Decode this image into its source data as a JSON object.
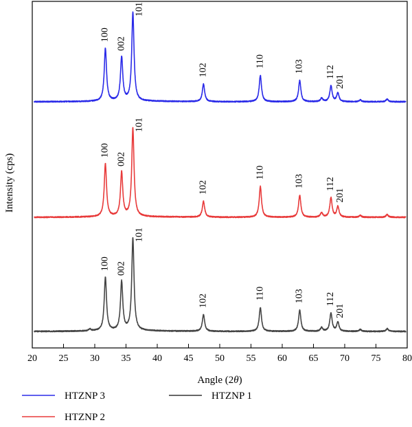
{
  "chart_data": {
    "type": "line",
    "title": "",
    "xlabel": "Angle (2θ)",
    "ylabel": "Intensity (cps)",
    "xlim": [
      20,
      80
    ],
    "x_ticks": [
      20,
      25,
      30,
      35,
      40,
      45,
      50,
      55,
      60,
      65,
      70,
      75,
      80
    ],
    "grid": false,
    "legend_position": "bottom",
    "legend": [
      {
        "name": "HTZNP 3",
        "color": "#2a2ae8"
      },
      {
        "name": "HTZNP 2",
        "color": "#e83a3a"
      },
      {
        "name": "HTZNP 1",
        "color": "#333333"
      }
    ],
    "series": [
      {
        "name": "HTZNP 3",
        "color": "#2a2ae8",
        "peaks": [
          {
            "x": 31.7,
            "y": 0.6,
            "label": "100"
          },
          {
            "x": 34.3,
            "y": 0.5,
            "label": "002"
          },
          {
            "x": 36.1,
            "y": 1.0,
            "label": "101"
          },
          {
            "x": 47.4,
            "y": 0.2,
            "label": "102"
          },
          {
            "x": 56.5,
            "y": 0.3,
            "label": "110"
          },
          {
            "x": 62.8,
            "y": 0.24,
            "label": "103"
          },
          {
            "x": 67.8,
            "y": 0.18,
            "label": "112"
          },
          {
            "x": 68.9,
            "y": 0.1,
            "label": "201"
          },
          {
            "x": 66.3,
            "y": 0.04
          },
          {
            "x": 72.5,
            "y": 0.02
          },
          {
            "x": 76.8,
            "y": 0.03
          }
        ]
      },
      {
        "name": "HTZNP 2",
        "color": "#e83a3a",
        "peaks": [
          {
            "x": 31.7,
            "y": 0.6,
            "label": "100"
          },
          {
            "x": 34.3,
            "y": 0.5,
            "label": "002"
          },
          {
            "x": 36.1,
            "y": 1.0,
            "label": "101"
          },
          {
            "x": 47.4,
            "y": 0.18,
            "label": "102"
          },
          {
            "x": 56.5,
            "y": 0.35,
            "label": "110"
          },
          {
            "x": 62.8,
            "y": 0.25,
            "label": "103"
          },
          {
            "x": 67.8,
            "y": 0.22,
            "label": "112"
          },
          {
            "x": 68.9,
            "y": 0.12,
            "label": "201"
          },
          {
            "x": 66.3,
            "y": 0.05
          },
          {
            "x": 72.5,
            "y": 0.02
          },
          {
            "x": 76.8,
            "y": 0.03
          }
        ]
      },
      {
        "name": "HTZNP 1",
        "color": "#444444",
        "peaks": [
          {
            "x": 31.7,
            "y": 0.58,
            "label": "100"
          },
          {
            "x": 34.3,
            "y": 0.53,
            "label": "002"
          },
          {
            "x": 36.1,
            "y": 1.0,
            "label": "101"
          },
          {
            "x": 47.4,
            "y": 0.18,
            "label": "102"
          },
          {
            "x": 56.5,
            "y": 0.26,
            "label": "110"
          },
          {
            "x": 62.8,
            "y": 0.23,
            "label": "103"
          },
          {
            "x": 67.8,
            "y": 0.2,
            "label": "112"
          },
          {
            "x": 68.9,
            "y": 0.1,
            "label": "201"
          },
          {
            "x": 29.2,
            "y": 0.02
          },
          {
            "x": 66.3,
            "y": 0.04
          },
          {
            "x": 72.5,
            "y": 0.02
          },
          {
            "x": 76.8,
            "y": 0.03
          }
        ]
      }
    ]
  }
}
